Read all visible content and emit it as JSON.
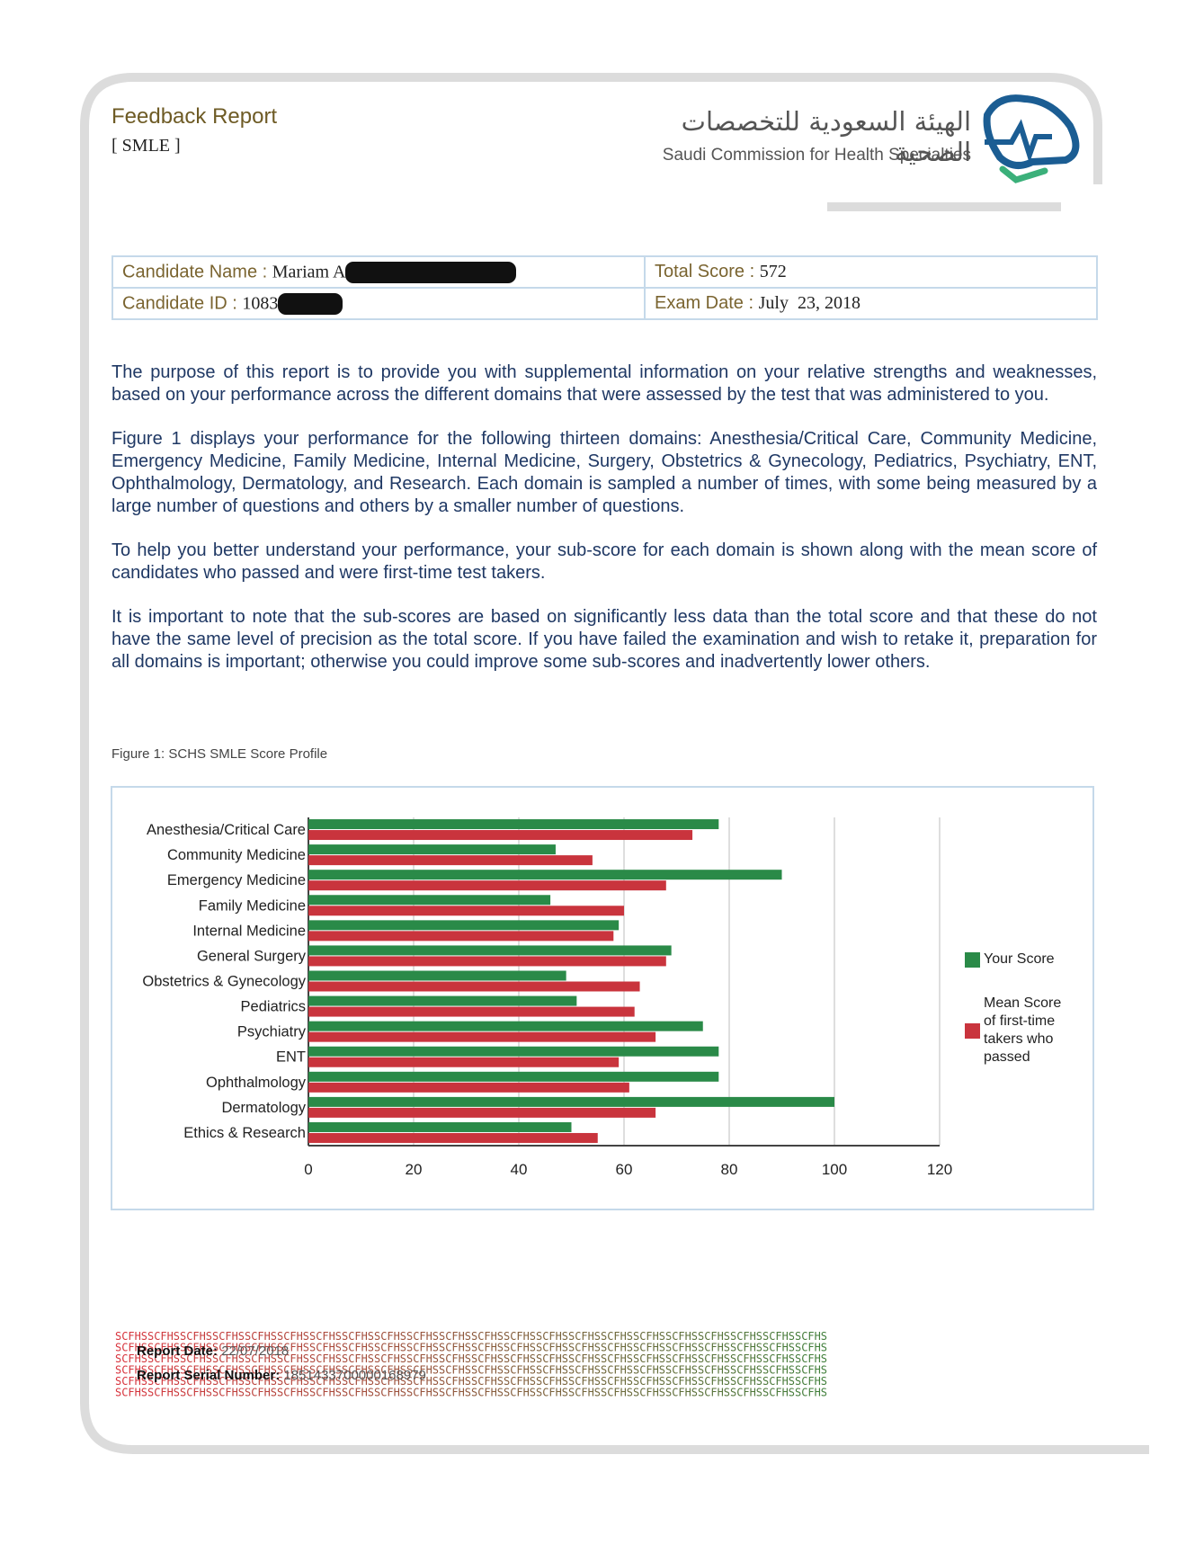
{
  "header": {
    "title": "Feedback Report",
    "subtitle": "[ SMLE ]",
    "org_arabic": "الهيئة السعودية للتخصصات الصحية",
    "org_english": "Saudi Commission for Health Specialties"
  },
  "candidate": {
    "name_label": "Candidate Name :",
    "name_value": "Mariam A",
    "score_label": "Total Score :",
    "score_value": "572",
    "id_label": "Candidate ID :",
    "id_value": "1083",
    "date_label": "Exam Date :",
    "date_value": "July  23, 2018"
  },
  "paragraphs": [
    "The purpose of this report is to provide you with supplemental information on your relative strengths and weaknesses, based on your performance across the different domains that were assessed by the test that was administered to you.",
    "Figure 1 displays your performance for the following thirteen domains: Anesthesia/Critical Care, Community Medicine, Emergency Medicine, Family Medicine, Internal Medicine, Surgery, Obstetrics & Gynecology, Pediatrics, Psychiatry, ENT, Ophthalmology, Dermatology, and Research. Each domain is sampled a number of times, with some being measured by a large number of questions and others by a smaller number of questions.",
    "To help you better understand your performance, your sub-score for each domain is shown along with the mean score of candidates who passed and were first-time test takers.",
    "It is important to note that the sub-scores are based on significantly less data than the total score and that these do not have the same level of precision as the total score. If you have failed the examination and wish to retake it, preparation for all domains is important; otherwise you could improve some sub-scores and inadvertently lower others."
  ],
  "figure_caption": "Figure 1: SCHS SMLE Score Profile",
  "chart_data": {
    "type": "hbar",
    "categories": [
      "Anesthesia/Critical Care",
      "Community Medicine",
      "Emergency Medicine",
      "Family Medicine",
      "Internal Medicine",
      "General Surgery",
      "Obstetrics & Gynecology",
      "Pediatrics",
      "Psychiatry",
      "ENT",
      "Ophthalmology",
      "Dermatology",
      "Ethics & Research"
    ],
    "series": [
      {
        "name": "Your Score",
        "color": "#2a8a48",
        "values": [
          78,
          47,
          90,
          46,
          59,
          69,
          49,
          51,
          75,
          78,
          78,
          100,
          50
        ]
      },
      {
        "name": "Mean Score of first-time takers who passed",
        "color": "#c9343d",
        "values": [
          73,
          54,
          68,
          60,
          58,
          68,
          63,
          62,
          66,
          59,
          61,
          66,
          55
        ]
      }
    ],
    "xlim": [
      0,
      120
    ],
    "xticks": [
      0,
      20,
      40,
      60,
      80,
      100,
      120
    ],
    "grid": true,
    "legend": "right"
  },
  "footer": {
    "pattern": "SCFHS",
    "date_label": "Report Date:",
    "date_value": "22/07/2018",
    "serial_label": "Report Serial Number:",
    "serial_value": "1851433700000168979"
  }
}
